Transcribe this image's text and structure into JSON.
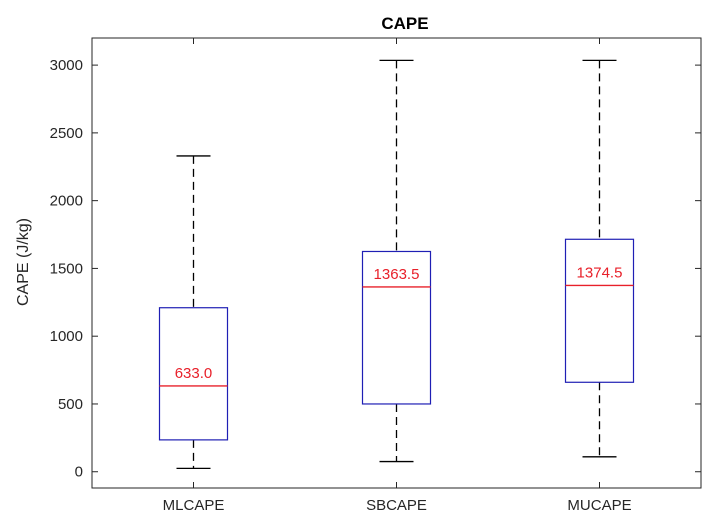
{
  "chart_data": {
    "type": "box",
    "title": "CAPE",
    "xlabel": "",
    "ylabel": "CAPE (J/kg)",
    "ylim": [
      -120,
      3200
    ],
    "yticks": [
      0,
      500,
      1000,
      1500,
      2000,
      2500,
      3000
    ],
    "categories": [
      "MLCAPE",
      "SBCAPE",
      "MUCAPE"
    ],
    "boxes": [
      {
        "category": "MLCAPE",
        "whisker_low": 25,
        "q1": 235,
        "median": 633.0,
        "q3": 1210,
        "whisker_high": 2330,
        "median_label": "633.0"
      },
      {
        "category": "SBCAPE",
        "whisker_low": 75,
        "q1": 500,
        "median": 1363.5,
        "q3": 1625,
        "whisker_high": 3035,
        "median_label": "1363.5"
      },
      {
        "category": "MUCAPE",
        "whisker_low": 110,
        "q1": 660,
        "median": 1374.5,
        "q3": 1715,
        "whisker_high": 3035,
        "median_label": "1374.5"
      }
    ],
    "grid": false,
    "colors": {
      "box": "#1f1fb4",
      "median": "#e8202a",
      "whisker": "#000000",
      "axis": "#262626"
    }
  }
}
